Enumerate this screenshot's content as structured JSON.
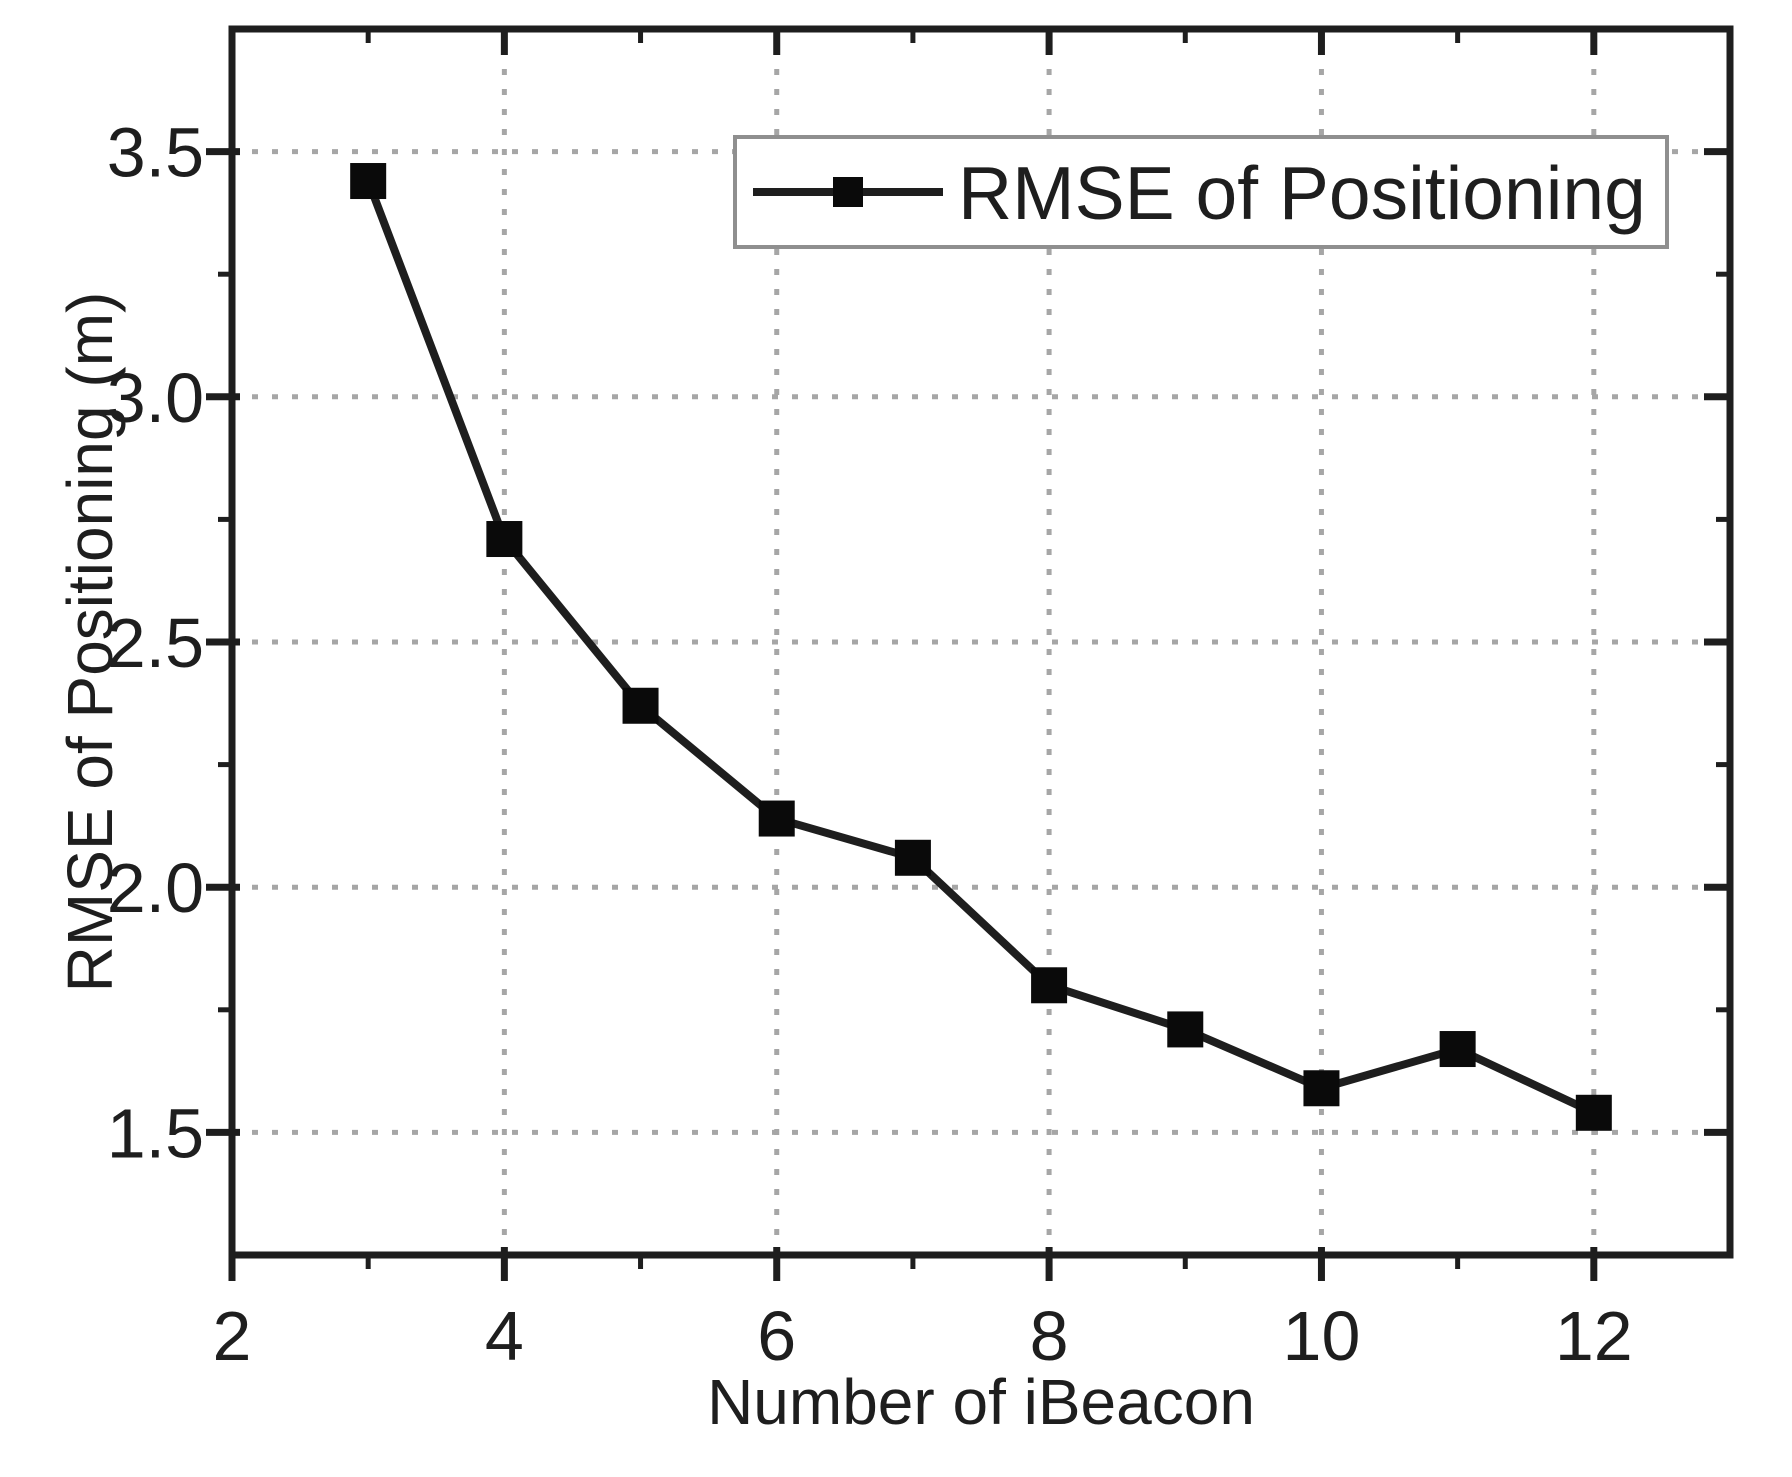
{
  "chart_data": {
    "type": "line",
    "title": "",
    "xlabel": "Number of iBeacon",
    "ylabel": "RMSE of Positioning (m)",
    "legend_label": "RMSE of Positioning",
    "series": [
      {
        "name": "RMSE of Positioning",
        "x": [
          3,
          4,
          5,
          6,
          7,
          8,
          9,
          10,
          11,
          12
        ],
        "y": [
          3.44,
          2.71,
          2.37,
          2.14,
          2.06,
          1.8,
          1.71,
          1.59,
          1.67,
          1.54
        ]
      }
    ],
    "xlim": [
      2,
      13
    ],
    "ylim": [
      1.25,
      3.75
    ],
    "x_major_ticks": [
      2,
      4,
      6,
      8,
      10,
      12
    ],
    "x_minor_ticks": [
      3,
      5,
      7,
      9,
      11
    ],
    "x_tick_labels": [
      "2",
      "4",
      "6",
      "8",
      "10",
      "12"
    ],
    "y_major_ticks": [
      1.5,
      2.0,
      2.5,
      3.0,
      3.5
    ],
    "y_minor_ticks": [
      1.75,
      2.25,
      2.75,
      3.25
    ],
    "y_tick_labels": [
      "1.5",
      "2.0",
      "2.5",
      "3.0",
      "3.5"
    ],
    "grid": "dotted-at-major-ticks",
    "legend_position": "top-right-inside",
    "marker": "filled-square",
    "line_style": "solid",
    "colors": {
      "line": "#1e1e1e",
      "marker": "#0a0a0a",
      "grid": "#a6a6a6",
      "axis": "#1e1e1e",
      "text": "#1e1e1e",
      "legend_border": "#8f8f8f",
      "background": "#ffffff"
    }
  }
}
